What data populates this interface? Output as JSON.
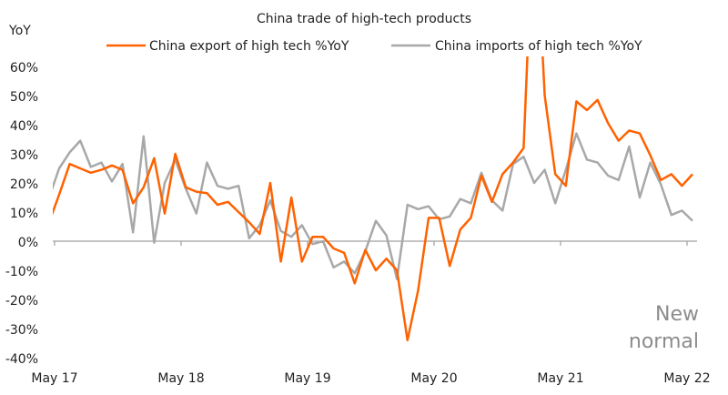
{
  "chart_data": {
    "type": "line",
    "title": "China trade of high-tech products",
    "ylabel": "YoY",
    "xlabel": "",
    "ylim": [
      -40,
      60
    ],
    "y_ticks": [
      "60%",
      "50%",
      "40%",
      "30%",
      "20%",
      "10%",
      "0%",
      "-10%",
      "-20%",
      "-30%",
      "-40%"
    ],
    "y_tick_values": [
      60,
      50,
      40,
      30,
      20,
      10,
      0,
      -10,
      -20,
      -30,
      -40
    ],
    "x_ticks": [
      "May 17",
      "May 18",
      "May 19",
      "May 20",
      "May 21",
      "May 22"
    ],
    "grid": false,
    "legend_position": "top",
    "annotation": "New normal",
    "colors": {
      "export": "#FF6200",
      "imports": "#A8A8A8",
      "axis": "#A0A0A0",
      "annotation": "#8C8C8C"
    },
    "series": [
      {
        "name": "China export of high tech %YoY",
        "color": "#FF6200",
        "values": [
          6,
          16,
          26.5,
          25,
          23.5,
          24.5,
          26,
          24.5,
          13,
          18.5,
          28.5,
          9.5,
          30,
          18.5,
          17,
          16.5,
          12.5,
          13.5,
          10,
          6.5,
          2.5,
          20,
          -7,
          15,
          -7,
          1.5,
          1.5,
          -2.5,
          -4,
          -14.5,
          -3,
          -10,
          -6,
          -10,
          -34,
          -17,
          8,
          8,
          -8.5,
          4,
          8,
          22.5,
          13.5,
          23,
          27,
          32,
          120,
          50,
          23,
          19,
          48,
          45,
          48.5,
          40.5,
          34.5,
          38,
          37,
          29.5,
          21,
          23,
          19,
          23
        ]
      },
      {
        "name": "China imports of high tech %YoY",
        "color": "#A8A8A8",
        "values": [
          14.5,
          25,
          30.5,
          34.5,
          25.5,
          27,
          20.5,
          26.5,
          3,
          36,
          -0.5,
          20,
          28,
          18,
          9.5,
          27,
          19,
          18,
          19,
          1,
          5.5,
          14,
          3.5,
          1.5,
          5.5,
          -1,
          0,
          -9,
          -7,
          -11,
          -3.5,
          7,
          2,
          -13,
          12.5,
          11,
          12,
          7.5,
          8.5,
          14.5,
          13,
          23.5,
          14,
          10.5,
          26.5,
          29,
          20,
          24.5,
          13,
          24.5,
          37,
          28,
          27,
          22.5,
          21,
          32.5,
          15,
          27,
          19.5,
          9,
          10.5,
          7
        ]
      }
    ]
  }
}
